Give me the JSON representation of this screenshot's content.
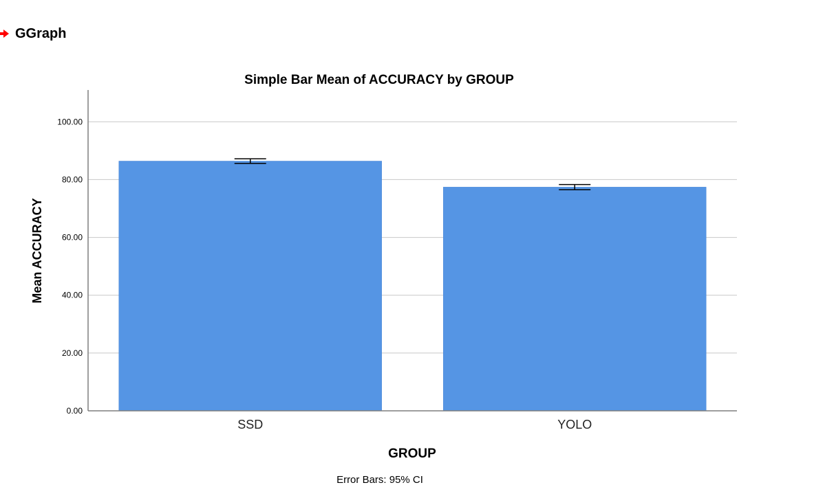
{
  "header": {
    "title": "GGraph",
    "icon": "red-arrow-icon",
    "icon_color": "#ff0000"
  },
  "chart_data": {
    "type": "bar",
    "title": "Simple Bar Mean of ACCURACY by GROUP",
    "xlabel": "GROUP",
    "ylabel": "Mean ACCURACY",
    "categories": [
      "SSD",
      "YOLO"
    ],
    "values": [
      86.4,
      77.4
    ],
    "error_bars": [
      {
        "low": 85.6,
        "high": 87.2
      },
      {
        "low": 76.5,
        "high": 78.3
      }
    ],
    "yticks": [
      "0.00",
      "20.00",
      "40.00",
      "60.00",
      "80.00",
      "100.00"
    ],
    "ylim": [
      0,
      111
    ],
    "grid": true,
    "bar_color": "#5595e4",
    "footnote": "Error Bars: 95% CI"
  }
}
